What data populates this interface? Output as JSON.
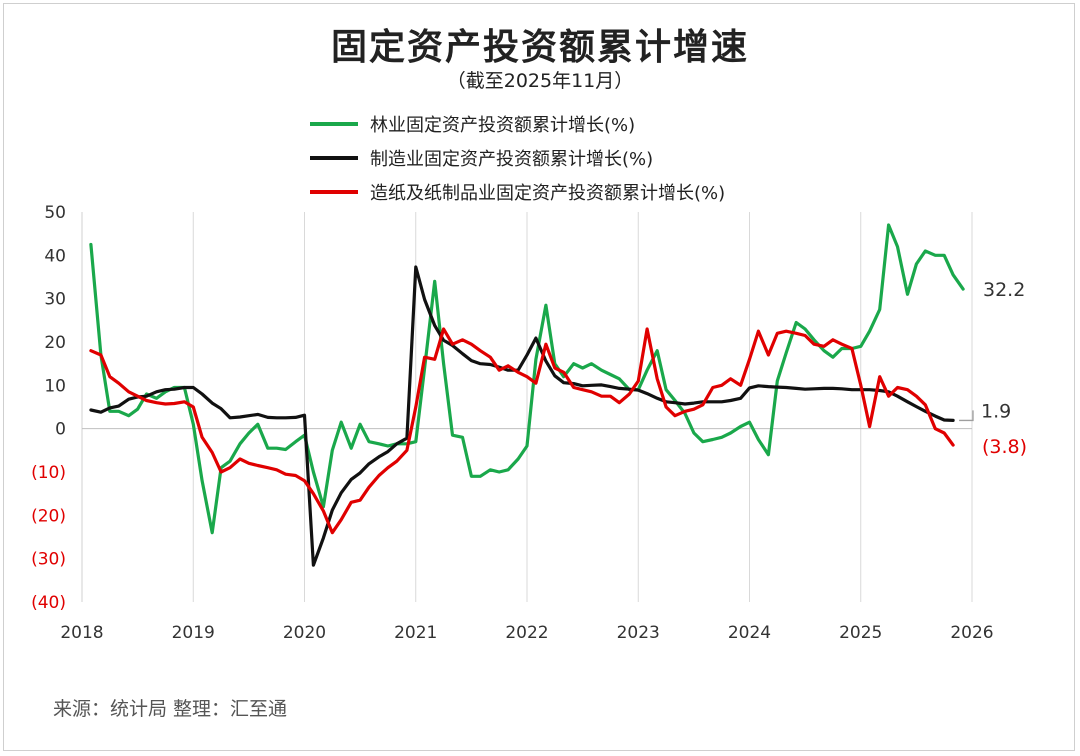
{
  "title": "固定资产投资额累计增速",
  "subtitle": "（截至2025年11月）",
  "source": "来源：统计局 整理：汇至通",
  "chart_data": {
    "type": "line",
    "title": "固定资产投资额累计增速",
    "subtitle": "（截至2025年11月）",
    "xlabel": "",
    "ylabel": "",
    "xlim": [
      2018,
      2026
    ],
    "ylim": [
      -40,
      50
    ],
    "grid": "vertical",
    "legend": "top-center",
    "xticks": [
      "2018",
      "2019",
      "2020",
      "2021",
      "2022",
      "2023",
      "2024",
      "2025",
      "2026"
    ],
    "yticks": [
      {
        "value": 50,
        "label": "50",
        "color": "#333333"
      },
      {
        "value": 40,
        "label": "40",
        "color": "#333333"
      },
      {
        "value": 30,
        "label": "30",
        "color": "#333333"
      },
      {
        "value": 20,
        "label": "20",
        "color": "#333333"
      },
      {
        "value": 10,
        "label": "10",
        "color": "#333333"
      },
      {
        "value": 0,
        "label": "0",
        "color": "#333333"
      },
      {
        "value": -10,
        "label": "(10)",
        "color": "#e00000"
      },
      {
        "value": -20,
        "label": "(20)",
        "color": "#e00000"
      },
      {
        "value": -30,
        "label": "(30)",
        "color": "#e00000"
      },
      {
        "value": -40,
        "label": "(40)",
        "color": "#e00000"
      }
    ],
    "series": [
      {
        "name": "林业固定资产投资额累计增长(%)",
        "color": "#1aa84b",
        "end_label": "32.2",
        "end_label_color": "#333333",
        "points": [
          [
            2018.08,
            42.5
          ],
          [
            2018.17,
            17.0
          ],
          [
            2018.25,
            4.0
          ],
          [
            2018.33,
            4.0
          ],
          [
            2018.42,
            3.0
          ],
          [
            2018.5,
            4.5
          ],
          [
            2018.58,
            8.0
          ],
          [
            2018.67,
            7.0
          ],
          [
            2018.75,
            8.5
          ],
          [
            2018.83,
            9.5
          ],
          [
            2018.92,
            9.5
          ],
          [
            2019.0,
            1.0
          ],
          [
            2019.08,
            -12.0
          ],
          [
            2019.17,
            -24.0
          ],
          [
            2019.25,
            -9.0
          ],
          [
            2019.33,
            -7.5
          ],
          [
            2019.42,
            -3.5
          ],
          [
            2019.5,
            -1.0
          ],
          [
            2019.58,
            1.0
          ],
          [
            2019.67,
            -4.5
          ],
          [
            2019.75,
            -4.5
          ],
          [
            2019.83,
            -4.8
          ],
          [
            2019.92,
            -3.0
          ],
          [
            2020.0,
            -1.5
          ],
          [
            2020.08,
            -10.0
          ],
          [
            2020.17,
            -18.0
          ],
          [
            2020.25,
            -5.0
          ],
          [
            2020.33,
            1.5
          ],
          [
            2020.42,
            -4.5
          ],
          [
            2020.5,
            1.0
          ],
          [
            2020.58,
            -3.0
          ],
          [
            2020.67,
            -3.5
          ],
          [
            2020.75,
            -4.0
          ],
          [
            2020.83,
            -3.5
          ],
          [
            2020.92,
            -3.5
          ],
          [
            2021.0,
            -3.0
          ],
          [
            2021.08,
            14.0
          ],
          [
            2021.17,
            34.0
          ],
          [
            2021.25,
            15.0
          ],
          [
            2021.33,
            -1.5
          ],
          [
            2021.42,
            -2.0
          ],
          [
            2021.5,
            -11.0
          ],
          [
            2021.58,
            -11.0
          ],
          [
            2021.67,
            -9.5
          ],
          [
            2021.75,
            -10.0
          ],
          [
            2021.83,
            -9.5
          ],
          [
            2021.92,
            -7.0
          ],
          [
            2022.0,
            -4.0
          ],
          [
            2022.08,
            16.0
          ],
          [
            2022.17,
            28.5
          ],
          [
            2022.25,
            15.0
          ],
          [
            2022.33,
            12.0
          ],
          [
            2022.42,
            15.0
          ],
          [
            2022.5,
            14.0
          ],
          [
            2022.58,
            15.0
          ],
          [
            2022.67,
            13.5
          ],
          [
            2022.75,
            12.5
          ],
          [
            2022.83,
            11.5
          ],
          [
            2022.92,
            9.0
          ],
          [
            2023.0,
            9.0
          ],
          [
            2023.08,
            13.5
          ],
          [
            2023.17,
            18.0
          ],
          [
            2023.25,
            9.0
          ],
          [
            2023.33,
            6.5
          ],
          [
            2023.42,
            3.5
          ],
          [
            2023.5,
            -1.0
          ],
          [
            2023.58,
            -3.0
          ],
          [
            2023.67,
            -2.5
          ],
          [
            2023.75,
            -2.0
          ],
          [
            2023.83,
            -1.0
          ],
          [
            2023.92,
            0.5
          ],
          [
            2024.0,
            1.5
          ],
          [
            2024.08,
            -2.5
          ],
          [
            2024.17,
            -6.0
          ],
          [
            2024.25,
            11.0
          ],
          [
            2024.33,
            17.5
          ],
          [
            2024.42,
            24.5
          ],
          [
            2024.5,
            23.0
          ],
          [
            2024.58,
            20.5
          ],
          [
            2024.67,
            18.0
          ],
          [
            2024.75,
            16.5
          ],
          [
            2024.83,
            18.5
          ],
          [
            2024.92,
            18.5
          ],
          [
            2025.0,
            19.0
          ],
          [
            2025.08,
            22.5
          ],
          [
            2025.17,
            27.5
          ],
          [
            2025.25,
            47.0
          ],
          [
            2025.33,
            42.0
          ],
          [
            2025.42,
            31.0
          ],
          [
            2025.5,
            38.0
          ],
          [
            2025.58,
            41.0
          ],
          [
            2025.67,
            40.0
          ],
          [
            2025.75,
            40.0
          ],
          [
            2025.83,
            35.5
          ],
          [
            2025.92,
            32.2
          ]
        ]
      },
      {
        "name": "制造业固定资产投资额累计增长(%)",
        "color": "#111111",
        "end_label": "1.9",
        "end_label_color": "#333333",
        "points": [
          [
            2018.08,
            4.3
          ],
          [
            2018.17,
            3.8
          ],
          [
            2018.25,
            4.8
          ],
          [
            2018.33,
            5.2
          ],
          [
            2018.42,
            6.8
          ],
          [
            2018.5,
            7.3
          ],
          [
            2018.58,
            7.5
          ],
          [
            2018.67,
            8.5
          ],
          [
            2018.75,
            9.0
          ],
          [
            2018.83,
            9.1
          ],
          [
            2018.92,
            9.5
          ],
          [
            2019.0,
            9.5
          ],
          [
            2019.08,
            8.0
          ],
          [
            2019.17,
            5.9
          ],
          [
            2019.25,
            4.6
          ],
          [
            2019.33,
            2.5
          ],
          [
            2019.42,
            2.7
          ],
          [
            2019.5,
            3.0
          ],
          [
            2019.58,
            3.3
          ],
          [
            2019.67,
            2.6
          ],
          [
            2019.75,
            2.5
          ],
          [
            2019.83,
            2.5
          ],
          [
            2019.92,
            2.6
          ],
          [
            2020.0,
            3.1
          ],
          [
            2020.08,
            -31.5
          ],
          [
            2020.17,
            -25.2
          ],
          [
            2020.25,
            -18.8
          ],
          [
            2020.33,
            -14.8
          ],
          [
            2020.42,
            -11.7
          ],
          [
            2020.5,
            -10.2
          ],
          [
            2020.58,
            -8.1
          ],
          [
            2020.67,
            -6.5
          ],
          [
            2020.75,
            -5.3
          ],
          [
            2020.83,
            -3.5
          ],
          [
            2020.92,
            -2.2
          ],
          [
            2021.0,
            37.3
          ],
          [
            2021.08,
            29.8
          ],
          [
            2021.17,
            23.8
          ],
          [
            2021.25,
            20.4
          ],
          [
            2021.33,
            19.2
          ],
          [
            2021.42,
            17.3
          ],
          [
            2021.5,
            15.7
          ],
          [
            2021.58,
            15.0
          ],
          [
            2021.67,
            14.8
          ],
          [
            2021.75,
            14.2
          ],
          [
            2021.83,
            13.5
          ],
          [
            2021.92,
            13.5
          ],
          [
            2022.0,
            17.0
          ],
          [
            2022.08,
            20.9
          ],
          [
            2022.17,
            15.6
          ],
          [
            2022.25,
            12.2
          ],
          [
            2022.33,
            10.6
          ],
          [
            2022.42,
            10.4
          ],
          [
            2022.5,
            9.9
          ],
          [
            2022.58,
            10.0
          ],
          [
            2022.67,
            10.1
          ],
          [
            2022.75,
            9.7
          ],
          [
            2022.83,
            9.3
          ],
          [
            2022.92,
            9.1
          ],
          [
            2023.0,
            8.9
          ],
          [
            2023.08,
            8.1
          ],
          [
            2023.17,
            7.0
          ],
          [
            2023.25,
            6.2
          ],
          [
            2023.33,
            6.0
          ],
          [
            2023.42,
            5.7
          ],
          [
            2023.5,
            5.9
          ],
          [
            2023.58,
            6.2
          ],
          [
            2023.67,
            6.2
          ],
          [
            2023.75,
            6.2
          ],
          [
            2023.83,
            6.5
          ],
          [
            2023.92,
            7.0
          ],
          [
            2024.0,
            9.4
          ],
          [
            2024.08,
            9.9
          ],
          [
            2024.17,
            9.7
          ],
          [
            2024.25,
            9.6
          ],
          [
            2024.33,
            9.5
          ],
          [
            2024.42,
            9.3
          ],
          [
            2024.5,
            9.1
          ],
          [
            2024.58,
            9.2
          ],
          [
            2024.67,
            9.3
          ],
          [
            2024.75,
            9.3
          ],
          [
            2024.83,
            9.2
          ],
          [
            2024.92,
            9.0
          ],
          [
            2025.0,
            9.0
          ],
          [
            2025.08,
            9.0
          ],
          [
            2025.17,
            8.8
          ],
          [
            2025.25,
            8.5
          ],
          [
            2025.33,
            7.5
          ],
          [
            2025.42,
            6.2
          ],
          [
            2025.5,
            5.1
          ],
          [
            2025.58,
            4.0
          ],
          [
            2025.67,
            2.9
          ],
          [
            2025.75,
            2.0
          ],
          [
            2025.83,
            1.9
          ]
        ]
      },
      {
        "name": "造纸及纸制品业固定资产投资额累计增长(%)",
        "color": "#e00000",
        "end_label": "(3.8)",
        "end_label_color": "#e00000",
        "points": [
          [
            2018.08,
            18.0
          ],
          [
            2018.17,
            17.0
          ],
          [
            2018.25,
            12.0
          ],
          [
            2018.33,
            10.5
          ],
          [
            2018.42,
            8.5
          ],
          [
            2018.5,
            7.5
          ],
          [
            2018.58,
            6.5
          ],
          [
            2018.67,
            6.0
          ],
          [
            2018.75,
            5.7
          ],
          [
            2018.83,
            5.8
          ],
          [
            2018.92,
            6.2
          ],
          [
            2019.0,
            5.0
          ],
          [
            2019.08,
            -2.0
          ],
          [
            2019.17,
            -5.5
          ],
          [
            2019.25,
            -10.0
          ],
          [
            2019.33,
            -9.0
          ],
          [
            2019.42,
            -7.0
          ],
          [
            2019.5,
            -8.0
          ],
          [
            2019.58,
            -8.5
          ],
          [
            2019.67,
            -9.0
          ],
          [
            2019.75,
            -9.5
          ],
          [
            2019.83,
            -10.5
          ],
          [
            2019.92,
            -10.8
          ],
          [
            2020.0,
            -12.0
          ],
          [
            2020.08,
            -15.0
          ],
          [
            2020.17,
            -19.0
          ],
          [
            2020.25,
            -24.0
          ],
          [
            2020.33,
            -21.0
          ],
          [
            2020.42,
            -17.0
          ],
          [
            2020.5,
            -16.5
          ],
          [
            2020.58,
            -13.5
          ],
          [
            2020.67,
            -10.8
          ],
          [
            2020.75,
            -9.0
          ],
          [
            2020.83,
            -7.5
          ],
          [
            2020.92,
            -5.0
          ],
          [
            2021.0,
            5.0
          ],
          [
            2021.08,
            16.5
          ],
          [
            2021.17,
            16.0
          ],
          [
            2021.25,
            23.0
          ],
          [
            2021.33,
            19.5
          ],
          [
            2021.42,
            20.5
          ],
          [
            2021.5,
            19.5
          ],
          [
            2021.58,
            18.0
          ],
          [
            2021.67,
            16.5
          ],
          [
            2021.75,
            13.5
          ],
          [
            2021.83,
            14.5
          ],
          [
            2021.92,
            13.0
          ],
          [
            2022.0,
            12.0
          ],
          [
            2022.08,
            10.5
          ],
          [
            2022.17,
            19.5
          ],
          [
            2022.25,
            14.0
          ],
          [
            2022.33,
            13.0
          ],
          [
            2022.42,
            9.5
          ],
          [
            2022.5,
            9.0
          ],
          [
            2022.58,
            8.5
          ],
          [
            2022.67,
            7.5
          ],
          [
            2022.75,
            7.5
          ],
          [
            2022.83,
            6.0
          ],
          [
            2022.92,
            8.0
          ],
          [
            2023.0,
            11.0
          ],
          [
            2023.08,
            23.0
          ],
          [
            2023.17,
            11.5
          ],
          [
            2023.25,
            5.0
          ],
          [
            2023.33,
            3.0
          ],
          [
            2023.42,
            4.0
          ],
          [
            2023.5,
            4.5
          ],
          [
            2023.58,
            5.5
          ],
          [
            2023.67,
            9.5
          ],
          [
            2023.75,
            10.0
          ],
          [
            2023.83,
            11.5
          ],
          [
            2023.92,
            10.0
          ],
          [
            2024.0,
            16.0
          ],
          [
            2024.08,
            22.5
          ],
          [
            2024.17,
            17.0
          ],
          [
            2024.25,
            22.0
          ],
          [
            2024.33,
            22.5
          ],
          [
            2024.42,
            22.0
          ],
          [
            2024.5,
            21.5
          ],
          [
            2024.58,
            19.5
          ],
          [
            2024.67,
            19.0
          ],
          [
            2024.75,
            20.5
          ],
          [
            2024.83,
            19.5
          ],
          [
            2024.92,
            18.5
          ],
          [
            2025.0,
            10.0
          ],
          [
            2025.08,
            0.5
          ],
          [
            2025.17,
            12.0
          ],
          [
            2025.25,
            7.5
          ],
          [
            2025.33,
            9.5
          ],
          [
            2025.42,
            9.0
          ],
          [
            2025.5,
            7.5
          ],
          [
            2025.58,
            5.5
          ],
          [
            2025.67,
            0.0
          ],
          [
            2025.75,
            -1.0
          ],
          [
            2025.83,
            -3.8
          ]
        ]
      }
    ]
  }
}
